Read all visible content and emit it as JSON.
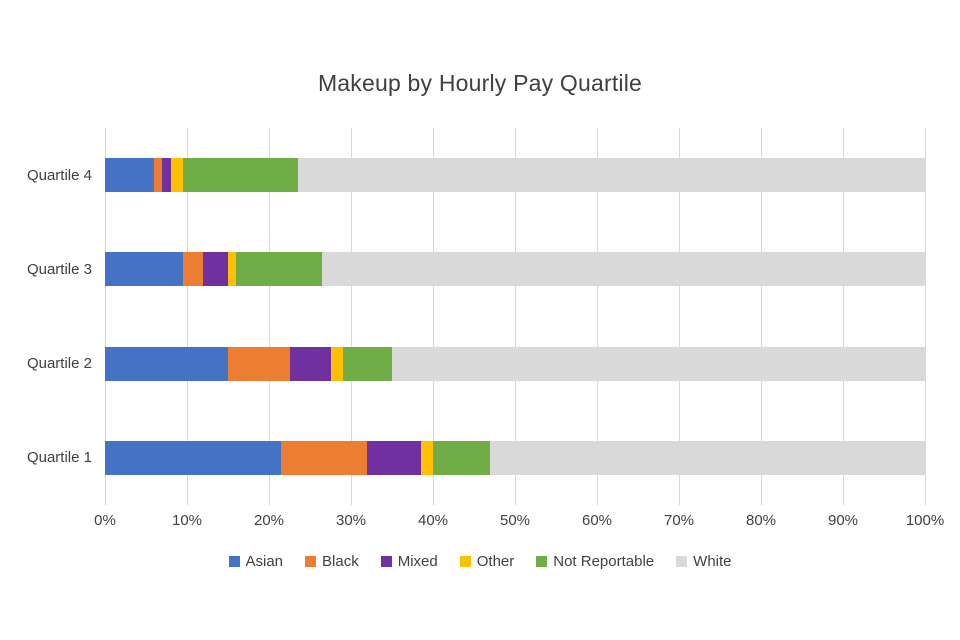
{
  "chart_data": {
    "type": "bar",
    "stacked": true,
    "orientation": "horizontal",
    "title": "Makeup by Hourly Pay Quartile",
    "categories": [
      "Quartile 4",
      "Quartile 3",
      "Quartile 2",
      "Quartile 1"
    ],
    "series": [
      {
        "name": "Asian",
        "color": "#4472C4",
        "values": [
          6,
          9.5,
          15,
          21.5
        ]
      },
      {
        "name": "Black",
        "color": "#ED7D31",
        "values": [
          1,
          2.5,
          7.5,
          10.5
        ]
      },
      {
        "name": "Mixed",
        "color": "#7030A0",
        "values": [
          1,
          3,
          5,
          6.5
        ]
      },
      {
        "name": "Other",
        "color": "#FFC000",
        "values": [
          1.5,
          1,
          1.5,
          1.5
        ]
      },
      {
        "name": "Not Reportable",
        "color": "#70AD47",
        "values": [
          14,
          10.5,
          6,
          7
        ]
      },
      {
        "name": "White",
        "color": "#D9D9D9",
        "values": [
          76.5,
          73.5,
          65,
          53
        ]
      }
    ],
    "x_ticks": [
      "0%",
      "10%",
      "20%",
      "30%",
      "40%",
      "50%",
      "60%",
      "70%",
      "80%",
      "90%",
      "100%"
    ],
    "xlim": [
      0,
      100
    ],
    "xlabel": "",
    "ylabel": "",
    "grid": true,
    "legend_position": "bottom"
  }
}
